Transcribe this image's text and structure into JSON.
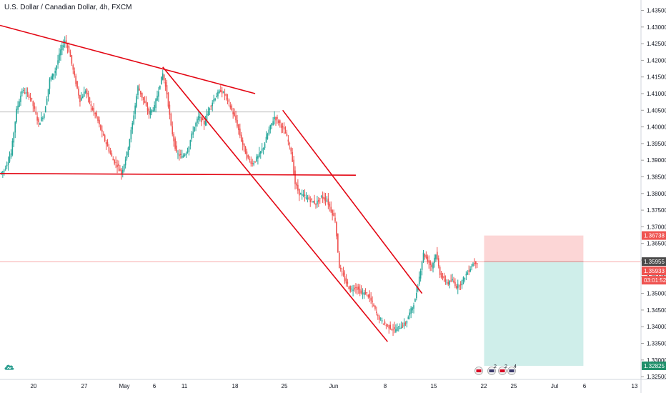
{
  "header": {
    "title": "U.S. Dollar / Canadian Dollar, 4h, FXCM"
  },
  "colors": {
    "up_candle": "#26a69a",
    "down_candle": "#ef5350",
    "trendline": "#e30613",
    "price_line": "#f7a8a8",
    "stop_zone": "#fcd6d6",
    "target_zone": "#cfeeea"
  },
  "icons": {
    "logo": "tradingview-cloud-icon",
    "event_flags": [
      "ca-flag-icon",
      "us-flag-icon",
      "ca-flag-icon",
      "us-flag-icon"
    ]
  },
  "event_badges": [
    "",
    "2",
    "2",
    "4"
  ],
  "price_badges": {
    "stop": "1.36738",
    "current": "1.35955",
    "last": "1.35933",
    "countdown": "03:01:52",
    "target": "1.32825"
  },
  "chart_data": {
    "type": "candlestick",
    "title": "U.S. Dollar / Canadian Dollar, 4h, FXCM",
    "ylim": [
      1.3235,
      1.4375
    ],
    "y_ticks": [
      "1.43500",
      "1.43000",
      "1.42500",
      "1.42000",
      "1.41500",
      "1.41000",
      "1.40500",
      "1.40000",
      "1.39500",
      "1.39000",
      "1.38500",
      "1.38000",
      "1.37500",
      "1.37000",
      "1.36500",
      "1.36000",
      "1.35500",
      "1.35000",
      "1.34500",
      "1.34000",
      "1.33500",
      "1.33000",
      "1.32500"
    ],
    "x_ticks": [
      "20",
      "27",
      "May",
      "6",
      "11",
      "18",
      "25",
      "Jun",
      "8",
      "15",
      "22",
      "25",
      "Jul",
      "6",
      "13"
    ],
    "close_path": [
      [
        0,
        1.386
      ],
      [
        3,
        1.387
      ],
      [
        8,
        1.392
      ],
      [
        12,
        1.405
      ],
      [
        16,
        1.411
      ],
      [
        22,
        1.409
      ],
      [
        28,
        1.401
      ],
      [
        32,
        1.404
      ],
      [
        36,
        1.414
      ],
      [
        40,
        1.417
      ],
      [
        44,
        1.423
      ],
      [
        47,
        1.426
      ],
      [
        50,
        1.423
      ],
      [
        54,
        1.415
      ],
      [
        58,
        1.408
      ],
      [
        62,
        1.411
      ],
      [
        66,
        1.406
      ],
      [
        70,
        1.403
      ],
      [
        74,
        1.398
      ],
      [
        78,
        1.394
      ],
      [
        82,
        1.39
      ],
      [
        86,
        1.388
      ],
      [
        88,
        1.386
      ],
      [
        92,
        1.392
      ],
      [
        96,
        1.401
      ],
      [
        100,
        1.412
      ],
      [
        104,
        1.408
      ],
      [
        108,
        1.404
      ],
      [
        112,
        1.406
      ],
      [
        116,
        1.413
      ],
      [
        118,
        1.416
      ],
      [
        121,
        1.41
      ],
      [
        124,
        1.4
      ],
      [
        128,
        1.392
      ],
      [
        132,
        1.391
      ],
      [
        136,
        1.393
      ],
      [
        140,
        1.399
      ],
      [
        144,
        1.403
      ],
      [
        148,
        1.401
      ],
      [
        152,
        1.406
      ],
      [
        156,
        1.409
      ],
      [
        160,
        1.411
      ],
      [
        164,
        1.409
      ],
      [
        168,
        1.405
      ],
      [
        171,
        1.402
      ],
      [
        175,
        1.396
      ],
      [
        179,
        1.391
      ],
      [
        183,
        1.389
      ],
      [
        187,
        1.391
      ],
      [
        191,
        1.394
      ],
      [
        195,
        1.399
      ],
      [
        199,
        1.403
      ],
      [
        203,
        1.401
      ],
      [
        207,
        1.398
      ],
      [
        211,
        1.393
      ],
      [
        214,
        1.383
      ],
      [
        217,
        1.38
      ],
      [
        221,
        1.379
      ],
      [
        225,
        1.378
      ],
      [
        229,
        1.377
      ],
      [
        233,
        1.379
      ],
      [
        237,
        1.378
      ],
      [
        240,
        1.375
      ],
      [
        243,
        1.372
      ],
      [
        246,
        1.358
      ],
      [
        250,
        1.354
      ],
      [
        254,
        1.351
      ],
      [
        258,
        1.352
      ],
      [
        262,
        1.35
      ],
      [
        266,
        1.35
      ],
      [
        270,
        1.347
      ],
      [
        274,
        1.343
      ],
      [
        278,
        1.341
      ],
      [
        282,
        1.34
      ],
      [
        286,
        1.339
      ],
      [
        290,
        1.34
      ],
      [
        294,
        1.341
      ],
      [
        298,
        1.345
      ],
      [
        301,
        1.348
      ],
      [
        304,
        1.355
      ],
      [
        307,
        1.362
      ],
      [
        310,
        1.36
      ],
      [
        313,
        1.358
      ],
      [
        316,
        1.362
      ],
      [
        319,
        1.356
      ],
      [
        322,
        1.354
      ],
      [
        325,
        1.353
      ],
      [
        328,
        1.354
      ],
      [
        331,
        1.352
      ],
      [
        334,
        1.353
      ],
      [
        337,
        1.355
      ],
      [
        340,
        1.357
      ],
      [
        343,
        1.359
      ],
      [
        346,
        1.3595
      ]
    ],
    "trendlines": [
      {
        "from": [
          0,
          1.4305
        ],
        "to": [
          185,
          1.41
        ]
      },
      {
        "from": [
          0,
          1.386
        ],
        "to": [
          258,
          1.3855
        ]
      },
      {
        "from": [
          118,
          1.418
        ],
        "to": [
          281,
          1.3355
        ]
      },
      {
        "from": [
          205,
          1.405
        ],
        "to": [
          306,
          1.35
        ]
      }
    ],
    "horizontal_line": 1.3595,
    "position": {
      "type": "short",
      "entry": 1.35955,
      "stop": 1.36738,
      "target": 1.32825,
      "x_range": [
        351,
        423
      ]
    }
  }
}
